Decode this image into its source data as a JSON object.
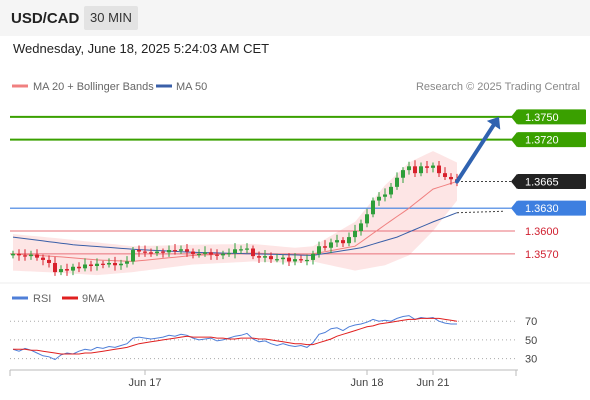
{
  "header": {
    "pair": "USD/CAD",
    "timeframe": "30 MIN"
  },
  "datetime": "Wednesday, June 18, 2025 5:24:03 AM CET",
  "legend": {
    "bb": "MA 20 + Bollinger Bands",
    "ma50": "MA 50",
    "credit": "Research © 2025 Trading Central",
    "rsi": "RSI",
    "ma9": "9MA"
  },
  "colors": {
    "bull": "#2e9e3a",
    "bear": "#d8202c",
    "bb_fill": "#fde0e0",
    "bb_line": "#f08080",
    "ma50": "#3a5fa8",
    "target": "#3aa000",
    "pivot": "#3d7fe0",
    "support": "#e8707a",
    "last": "#222222",
    "rsi": "#4f7fd8",
    "rsi_ma": "#e02020"
  },
  "chart_data": [
    {
      "type": "candlestick",
      "title": "USD/CAD 30 MIN",
      "x_ticks": [
        "Jun 17",
        "Jun 18",
        "Jun 21"
      ],
      "x_tick_positions": [
        22,
        59,
        70
      ],
      "n_bars": 75,
      "ylim": [
        1.3533,
        1.378
      ],
      "levels": [
        {
          "label": "1.3750",
          "value": 1.375,
          "kind": "target"
        },
        {
          "label": "1.3720",
          "value": 1.372,
          "kind": "target"
        },
        {
          "label": "1.3665",
          "value": 1.3665,
          "kind": "last"
        },
        {
          "label": "1.3630",
          "value": 1.363,
          "kind": "pivot"
        },
        {
          "label": "1.3600",
          "value": 1.36,
          "kind": "support"
        },
        {
          "label": "1.3570",
          "value": 1.357,
          "kind": "support"
        }
      ],
      "close": [
        1.357,
        1.3568,
        1.3567,
        1.3569,
        1.3565,
        1.3562,
        1.3558,
        1.3546,
        1.355,
        1.3548,
        1.3553,
        1.3551,
        1.3556,
        1.3554,
        1.3557,
        1.3556,
        1.3558,
        1.3555,
        1.3557,
        1.356,
        1.3575,
        1.3573,
        1.3572,
        1.3571,
        1.3573,
        1.3572,
        1.3575,
        1.3574,
        1.3576,
        1.3573,
        1.357,
        1.357,
        1.3572,
        1.3569,
        1.3568,
        1.357,
        1.3571,
        1.3576,
        1.3576,
        1.3577,
        1.3567,
        1.3565,
        1.3567,
        1.3563,
        1.3563,
        1.3565,
        1.356,
        1.3563,
        1.3562,
        1.3562,
        1.357,
        1.358,
        1.3578,
        1.3585,
        1.3588,
        1.3584,
        1.3592,
        1.36,
        1.361,
        1.3622,
        1.364,
        1.3645,
        1.3648,
        1.3658,
        1.367,
        1.368,
        1.3685,
        1.3676,
        1.3685,
        1.3683,
        1.3686,
        1.3676,
        1.3671,
        1.3668,
        1.3665
      ],
      "bb_mid_anchors": [
        [
          0,
          1.357
        ],
        [
          8,
          1.3566
        ],
        [
          14,
          1.3562
        ],
        [
          20,
          1.356
        ],
        [
          30,
          1.3568
        ],
        [
          40,
          1.3571
        ],
        [
          47,
          1.3569
        ],
        [
          50,
          1.357
        ],
        [
          57,
          1.358
        ],
        [
          62,
          1.3608
        ],
        [
          66,
          1.363
        ],
        [
          70,
          1.3655
        ],
        [
          74,
          1.3665
        ]
      ],
      "bb_upper_anchors": [
        [
          0,
          1.3596
        ],
        [
          8,
          1.359
        ],
        [
          14,
          1.3585
        ],
        [
          20,
          1.358
        ],
        [
          30,
          1.3582
        ],
        [
          40,
          1.3583
        ],
        [
          47,
          1.3578
        ],
        [
          50,
          1.358
        ],
        [
          57,
          1.3612
        ],
        [
          62,
          1.366
        ],
        [
          66,
          1.369
        ],
        [
          70,
          1.3705
        ],
        [
          74,
          1.369
        ]
      ],
      "bb_lower_anchors": [
        [
          0,
          1.3548
        ],
        [
          8,
          1.3545
        ],
        [
          14,
          1.3542
        ],
        [
          20,
          1.3546
        ],
        [
          30,
          1.3556
        ],
        [
          40,
          1.356
        ],
        [
          47,
          1.3558
        ],
        [
          50,
          1.356
        ],
        [
          57,
          1.3548
        ],
        [
          62,
          1.3555
        ],
        [
          66,
          1.3568
        ],
        [
          70,
          1.36
        ],
        [
          74,
          1.364
        ]
      ],
      "ma50_anchors": [
        [
          0,
          1.3592
        ],
        [
          10,
          1.3582
        ],
        [
          20,
          1.3576
        ],
        [
          30,
          1.3572
        ],
        [
          40,
          1.357
        ],
        [
          50,
          1.3568
        ],
        [
          58,
          1.3578
        ],
        [
          64,
          1.3592
        ],
        [
          70,
          1.3612
        ],
        [
          74,
          1.3624
        ]
      ],
      "ma50_projection": [
        [
          74,
          1.3624
        ],
        [
          82,
          1.3626
        ]
      ],
      "bb_projection": [
        [
          74,
          1.3665
        ],
        [
          80,
          1.3668
        ]
      ],
      "forecast_arrow": {
        "from": [
          74,
          1.3665
        ],
        "to": [
          81,
          1.375
        ]
      }
    },
    {
      "type": "line",
      "title": "RSI",
      "ylim": [
        20,
        82
      ],
      "y_ticks": [
        70,
        50,
        30
      ],
      "series": [
        {
          "name": "RSI",
          "values": [
            40,
            38,
            41,
            39,
            36,
            33,
            32,
            29,
            34,
            36,
            35,
            38,
            40,
            39,
            42,
            41,
            43,
            42,
            44,
            46,
            52,
            53,
            52,
            51,
            52,
            53,
            55,
            54,
            56,
            55,
            52,
            50,
            51,
            52,
            49,
            50,
            52,
            54,
            55,
            57,
            51,
            48,
            49,
            46,
            44,
            46,
            44,
            43,
            44,
            42,
            47,
            56,
            58,
            62,
            63,
            60,
            64,
            66,
            67,
            69,
            72,
            70,
            71,
            70,
            73,
            75,
            76,
            72,
            74,
            73,
            74,
            70,
            68,
            67,
            67
          ]
        },
        {
          "name": "9MA",
          "values": [
            40,
            40,
            40,
            39,
            39,
            38,
            37,
            36,
            35,
            35,
            35,
            35,
            36,
            36,
            37,
            38,
            39,
            40,
            41,
            42,
            44,
            46,
            47,
            48,
            49,
            50,
            51,
            52,
            53,
            54,
            53,
            53,
            53,
            53,
            52,
            52,
            51,
            51,
            52,
            52,
            52,
            51,
            51,
            50,
            49,
            48,
            47,
            46,
            46,
            45,
            45,
            47,
            49,
            51,
            54,
            56,
            58,
            60,
            62,
            64,
            65,
            67,
            68,
            69,
            70,
            71,
            72,
            72,
            73,
            73,
            73,
            73,
            72,
            71,
            70
          ]
        }
      ]
    }
  ]
}
